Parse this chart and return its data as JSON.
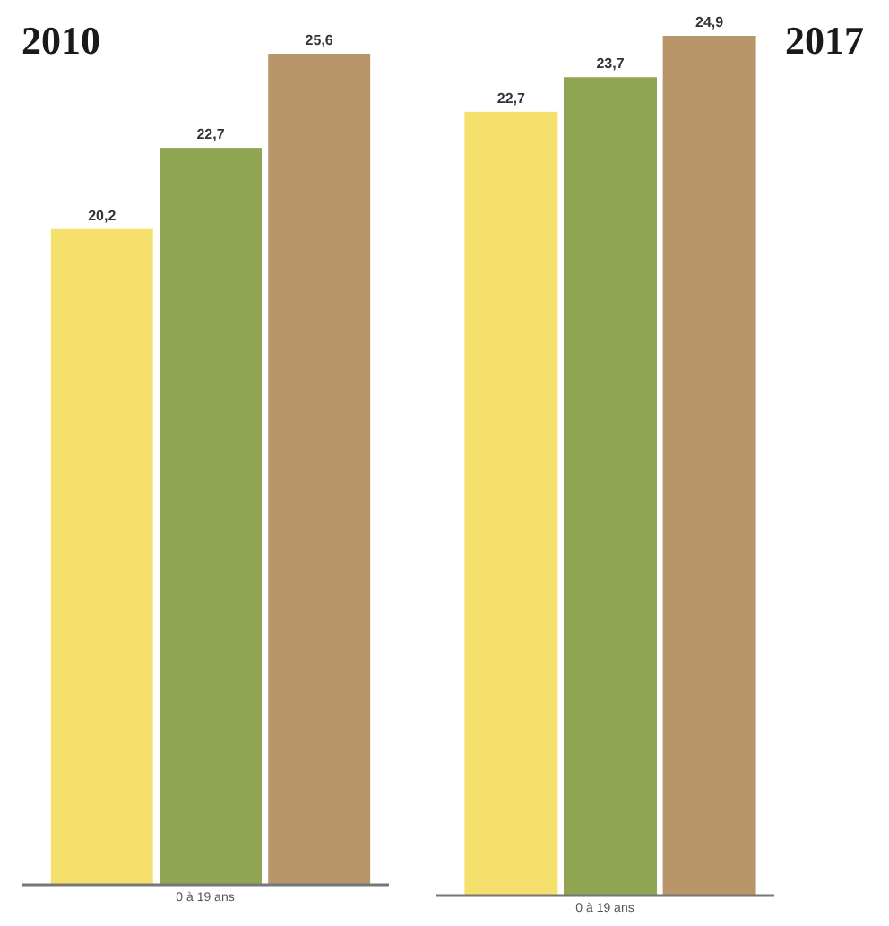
{
  "chart_data": [
    {
      "type": "bar",
      "title": "2010",
      "xlabel": "0 à 19 ans",
      "categories": [
        null,
        null,
        null
      ],
      "values": [
        20.2,
        22.7,
        25.6
      ],
      "colors": [
        "#f5e06e",
        "#8fa552",
        "#b8966a"
      ],
      "value_labels": [
        "20,2",
        "22,7",
        "25,6"
      ]
    },
    {
      "type": "bar",
      "title": "2017",
      "xlabel": "0 à 19 ans",
      "categories": [
        null,
        null,
        null
      ],
      "values": [
        22.7,
        23.7,
        24.9
      ],
      "colors": [
        "#f5e06e",
        "#8fa552",
        "#b8966a"
      ],
      "value_labels": [
        "22,7",
        "23,7",
        "24,9"
      ]
    }
  ]
}
